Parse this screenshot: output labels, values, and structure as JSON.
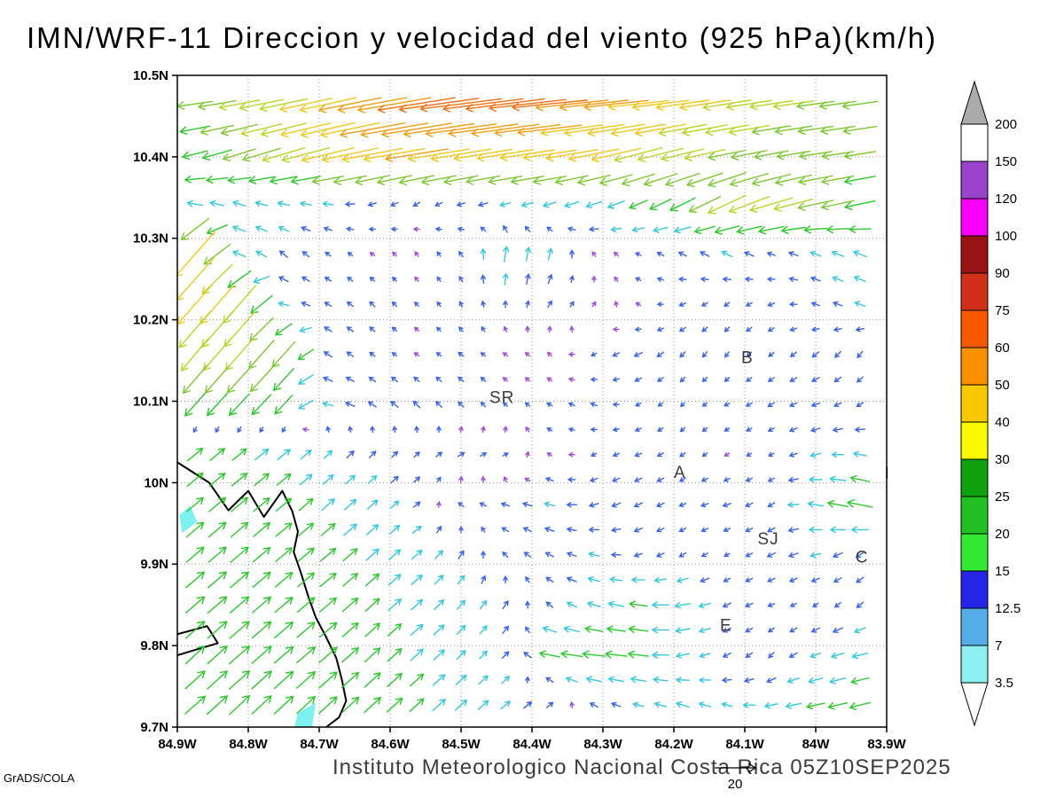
{
  "page": {
    "title": "IMN/WRF-11 Direccion y velocidad del viento (925 hPa)(km/h)",
    "footer": "Instituto Meteorologico Nacional Costa Rica 05Z10SEP2025",
    "stamp": "GrADS/COLA"
  },
  "chart_data": {
    "type": "vector_field",
    "subtype": "wind_direction_speed",
    "title": "IMN/WRF-11 Direccion y velocidad del viento (925 hPa)(km/h)",
    "level": "925 hPa",
    "units": "km/h",
    "valid_time": "05Z10SEP2025",
    "source": "Instituto Meteorologico Nacional Costa Rica",
    "x_axis": {
      "labels": [
        "84.9W",
        "84.8W",
        "84.7W",
        "84.6W",
        "84.5W",
        "84.4W",
        "84.3W",
        "84.2W",
        "84.1W",
        "84W",
        "83.9W"
      ],
      "values": [
        -84.9,
        -84.8,
        -84.7,
        -84.6,
        -84.5,
        -84.4,
        -84.3,
        -84.2,
        -84.1,
        -84.0,
        -83.9
      ]
    },
    "y_axis": {
      "labels": [
        "10.5N",
        "10.4N",
        "10.3N",
        "10.2N",
        "10.1N",
        "10N",
        "9.9N",
        "9.8N",
        "9.7N"
      ],
      "values": [
        10.5,
        10.4,
        10.3,
        10.2,
        10.1,
        10.0,
        9.9,
        9.8,
        9.7
      ]
    },
    "grid": {
      "style": "dotted",
      "color": "#909090"
    },
    "colorbar": {
      "labels": [
        "3.5",
        "7",
        "12.5",
        "15",
        "20",
        "25",
        "30",
        "40",
        "50",
        "60",
        "75",
        "90",
        "100",
        "120",
        "150",
        "200"
      ],
      "levels": [
        3.5,
        7,
        12.5,
        15,
        20,
        25,
        30,
        40,
        50,
        60,
        75,
        90,
        100,
        120,
        150,
        200
      ],
      "segment_colors": [
        "#8EEFF0",
        "#55AEE8",
        "#2525E8",
        "#33E833",
        "#22C022",
        "#0FA00F",
        "#F8F800",
        "#F8C800",
        "#F89000",
        "#F85800",
        "#D03018",
        "#981414",
        "#F800F8",
        "#9944CC",
        "#FFFFFF"
      ],
      "above_color": "#ABABAB",
      "below_color": "#FFFFFF"
    },
    "arrow_palette": {
      "thresholds": [
        4,
        8,
        14,
        25,
        32,
        40,
        50,
        60,
        75
      ],
      "colors": [
        "#A04CD8",
        "#3A62E8",
        "#35C8DC",
        "#2EC82E",
        "#7DC832",
        "#BCD42A",
        "#F0C81E",
        "#F0A018",
        "#F07014",
        "#E03214"
      ]
    },
    "reference_vector": {
      "speed": 20,
      "label": "20"
    },
    "cities": [
      {
        "label": "SR",
        "lon": -84.46,
        "lat": 10.098
      },
      {
        "label": "B",
        "lon": -84.105,
        "lat": 10.147
      },
      {
        "label": "A",
        "lon": -84.2,
        "lat": 10.006
      },
      {
        "label": "SJ",
        "lon": -84.082,
        "lat": 9.924
      },
      {
        "label": "C",
        "lon": -83.944,
        "lat": 9.902
      },
      {
        "label": "E",
        "lon": -84.135,
        "lat": 9.818
      },
      {
        "label": "I",
        "lon": -83.903,
        "lat": 10.005
      }
    ],
    "coastline": [
      [
        [
          -84.9,
          10.025
        ],
        [
          -84.855,
          10.0
        ],
        [
          -84.828,
          9.966
        ],
        [
          -84.8,
          9.99
        ],
        [
          -84.778,
          9.958
        ],
        [
          -84.752,
          9.99
        ],
        [
          -84.738,
          9.965
        ],
        [
          -84.73,
          9.94
        ],
        [
          -84.736,
          9.915
        ],
        [
          -84.726,
          9.89
        ],
        [
          -84.716,
          9.862
        ],
        [
          -84.705,
          9.835
        ],
        [
          -84.69,
          9.81
        ],
        [
          -84.676,
          9.785
        ],
        [
          -84.668,
          9.758
        ],
        [
          -84.662,
          9.732
        ],
        [
          -84.672,
          9.712
        ],
        [
          -84.69,
          9.7
        ]
      ],
      [
        [
          -84.9,
          9.814
        ],
        [
          -84.858,
          9.824
        ],
        [
          -84.843,
          9.803
        ],
        [
          -84.87,
          9.796
        ],
        [
          -84.9,
          9.788
        ]
      ]
    ],
    "patches": [
      {
        "color": "#7DF0F0",
        "points": [
          [
            -84.893,
            9.938
          ],
          [
            -84.872,
            9.952
          ],
          [
            -84.882,
            9.972
          ],
          [
            -84.897,
            9.96
          ]
        ]
      },
      {
        "color": "#7DF0F0",
        "points": [
          [
            -84.73,
            9.717
          ],
          [
            -84.705,
            9.73
          ],
          [
            -84.71,
            9.7
          ],
          [
            -84.735,
            9.7
          ]
        ]
      }
    ],
    "wind": {
      "comment": "u,v components in km/h on regular lon/lat grid, row 0 = north",
      "lon0": -84.875,
      "dlon": 0.0625,
      "nlon": 16,
      "lat0": 10.465,
      "dlat": -0.0615,
      "nlat": 13,
      "cells": [
        [
          [
            -28,
            -4
          ],
          [
            -32,
            -6
          ],
          [
            -38,
            -8
          ],
          [
            -45,
            -10
          ],
          [
            -55,
            -10
          ],
          [
            -62,
            -10
          ],
          [
            -65,
            -8
          ],
          [
            -63,
            -8
          ],
          [
            -60,
            -6
          ],
          [
            -55,
            -6
          ],
          [
            -48,
            -5
          ],
          [
            -42,
            -6
          ],
          [
            -38,
            -6
          ],
          [
            -34,
            -5
          ],
          [
            -30,
            -4
          ],
          [
            -28,
            -4
          ]
        ],
        [
          [
            -20,
            -5
          ],
          [
            -26,
            -8
          ],
          [
            -34,
            -10
          ],
          [
            -42,
            -10
          ],
          [
            -48,
            -9
          ],
          [
            -50,
            -8
          ],
          [
            -48,
            -8
          ],
          [
            -45,
            -7
          ],
          [
            -42,
            -6
          ],
          [
            -40,
            -8
          ],
          [
            -38,
            -10
          ],
          [
            -34,
            -8
          ],
          [
            -30,
            -6
          ],
          [
            -27,
            -5
          ],
          [
            -26,
            -4
          ],
          [
            -25,
            -4
          ]
        ],
        [
          [
            -12,
            2
          ],
          [
            -10,
            3
          ],
          [
            -9,
            2
          ],
          [
            -8,
            1
          ],
          [
            -6,
            -2
          ],
          [
            -5,
            -3
          ],
          [
            -6,
            -2
          ],
          [
            -8,
            -2
          ],
          [
            -10,
            -3
          ],
          [
            -12,
            -4
          ],
          [
            -14,
            -6
          ],
          [
            -20,
            -10
          ],
          [
            -30,
            -14
          ],
          [
            -34,
            -10
          ],
          [
            -28,
            -6
          ],
          [
            -24,
            -5
          ]
        ],
        [
          [
            -32,
            -36
          ],
          [
            -10,
            4
          ],
          [
            -6,
            5
          ],
          [
            -4,
            3
          ],
          [
            -3,
            2
          ],
          [
            -2,
            3
          ],
          [
            -3,
            4
          ],
          [
            2,
            12
          ],
          [
            2,
            9
          ],
          [
            -2,
            3
          ],
          [
            -4,
            2
          ],
          [
            -6,
            3
          ],
          [
            -8,
            4
          ],
          [
            -6,
            2
          ],
          [
            -8,
            3
          ],
          [
            -10,
            4
          ]
        ],
        [
          [
            -28,
            -32
          ],
          [
            -26,
            -30
          ],
          [
            -8,
            2
          ],
          [
            -5,
            3
          ],
          [
            -4,
            4
          ],
          [
            -3,
            3
          ],
          [
            -2,
            4
          ],
          [
            0,
            5
          ],
          [
            3,
            5
          ],
          [
            2,
            3
          ],
          [
            -3,
            2
          ],
          [
            -5,
            -2
          ],
          [
            -4,
            -3
          ],
          [
            -5,
            -2
          ],
          [
            -6,
            2
          ],
          [
            -8,
            3
          ]
        ],
        [
          [
            -22,
            -26
          ],
          [
            -22,
            -25
          ],
          [
            -18,
            -20
          ],
          [
            -6,
            4
          ],
          [
            -4,
            3
          ],
          [
            -3,
            2
          ],
          [
            -4,
            3
          ],
          [
            -3,
            2
          ],
          [
            -2,
            2
          ],
          [
            -4,
            -2
          ],
          [
            -6,
            -3
          ],
          [
            -4,
            -4
          ],
          [
            -3,
            -4
          ],
          [
            -4,
            -3
          ],
          [
            -5,
            -4
          ],
          [
            -4,
            -5
          ]
        ],
        [
          [
            -16,
            -18
          ],
          [
            -16,
            -17
          ],
          [
            -14,
            -15
          ],
          [
            -8,
            2
          ],
          [
            -6,
            4
          ],
          [
            -5,
            5
          ],
          [
            -4,
            4
          ],
          [
            -3,
            3
          ],
          [
            -4,
            2
          ],
          [
            -5,
            2
          ],
          [
            -4,
            -2
          ],
          [
            -3,
            -3
          ],
          [
            -4,
            -2
          ],
          [
            -5,
            -3
          ],
          [
            -6,
            -2
          ],
          [
            -5,
            -3
          ]
        ],
        [
          [
            12,
            10
          ],
          [
            11,
            9
          ],
          [
            10,
            8
          ],
          [
            6,
            6
          ],
          [
            5,
            5
          ],
          [
            4,
            4
          ],
          [
            5,
            3
          ],
          [
            4,
            2
          ],
          [
            -3,
            2
          ],
          [
            -4,
            -2
          ],
          [
            -5,
            -2
          ],
          [
            -4,
            -3
          ],
          [
            -3,
            -2
          ],
          [
            -4,
            -2
          ],
          [
            -8,
            -2
          ],
          [
            -10,
            2
          ]
        ],
        [
          [
            13,
            11
          ],
          [
            13,
            11
          ],
          [
            12,
            10
          ],
          [
            10,
            9
          ],
          [
            8,
            7
          ],
          [
            5,
            4
          ],
          [
            -4,
            3
          ],
          [
            -6,
            2
          ],
          [
            -8,
            2
          ],
          [
            -7,
            -2
          ],
          [
            -6,
            -3
          ],
          [
            -5,
            -2
          ],
          [
            -6,
            -2
          ],
          [
            -5,
            -3
          ],
          [
            -12,
            2
          ],
          [
            -20,
            4
          ]
        ],
        [
          [
            14,
            12
          ],
          [
            14,
            12
          ],
          [
            13,
            11
          ],
          [
            12,
            10
          ],
          [
            10,
            9
          ],
          [
            8,
            7
          ],
          [
            4,
            6
          ],
          [
            -4,
            4
          ],
          [
            -6,
            3
          ],
          [
            -8,
            2
          ],
          [
            -6,
            -2
          ],
          [
            -5,
            -3
          ],
          [
            -4,
            -2
          ],
          [
            -6,
            -3
          ],
          [
            -8,
            -2
          ],
          [
            -6,
            -4
          ]
        ],
        [
          [
            15,
            13
          ],
          [
            15,
            13
          ],
          [
            14,
            12
          ],
          [
            13,
            11
          ],
          [
            11,
            10
          ],
          [
            9,
            8
          ],
          [
            6,
            7
          ],
          [
            4,
            6
          ],
          [
            -5,
            4
          ],
          [
            -10,
            3
          ],
          [
            -14,
            2
          ],
          [
            -12,
            -2
          ],
          [
            -6,
            -3
          ],
          [
            -5,
            -2
          ],
          [
            -4,
            -3
          ],
          [
            -5,
            -4
          ]
        ],
        [
          [
            15,
            14
          ],
          [
            16,
            14
          ],
          [
            15,
            13
          ],
          [
            14,
            12
          ],
          [
            12,
            11
          ],
          [
            10,
            9
          ],
          [
            7,
            7
          ],
          [
            5,
            5
          ],
          [
            -16,
            3
          ],
          [
            -18,
            2
          ],
          [
            -16,
            2
          ],
          [
            -10,
            -2
          ],
          [
            -6,
            -3
          ],
          [
            -4,
            -4
          ],
          [
            -8,
            -3
          ],
          [
            -12,
            -3
          ]
        ],
        [
          [
            16,
            14
          ],
          [
            16,
            15
          ],
          [
            15,
            14
          ],
          [
            14,
            13
          ],
          [
            13,
            12
          ],
          [
            11,
            10
          ],
          [
            9,
            8
          ],
          [
            7,
            6
          ],
          [
            5,
            4
          ],
          [
            -6,
            3
          ],
          [
            -8,
            2
          ],
          [
            -10,
            3
          ],
          [
            -8,
            2
          ],
          [
            -10,
            -2
          ],
          [
            -14,
            -3
          ],
          [
            -16,
            -4
          ]
        ]
      ]
    }
  }
}
